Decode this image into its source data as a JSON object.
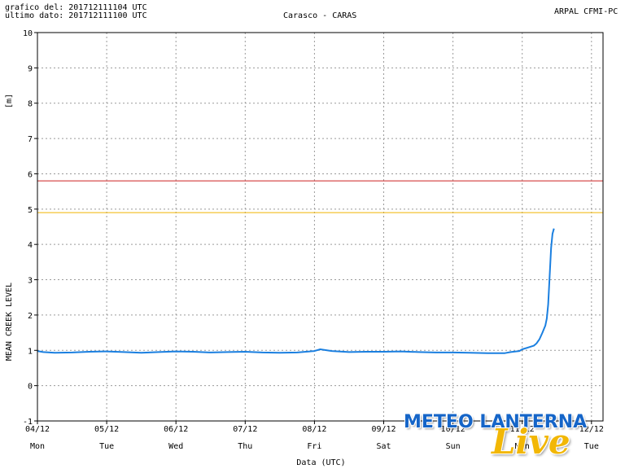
{
  "header": {
    "grafico_del": "grafico del: 201712111104 UTC",
    "ultimo_dato": "ultimo dato: 201712111100 UTC",
    "station": "Carasco - CARAS",
    "source": "ARPAL CFMI-PC"
  },
  "chart_data": {
    "type": "line",
    "title": "Carasco - CARAS",
    "ylabel": "MEAN CREEK LEVEL",
    "yunit": "[m]",
    "xlabel": "Data (UTC)",
    "ylim": [
      -1,
      10
    ],
    "yticks": [
      -1,
      0,
      1,
      2,
      3,
      4,
      5,
      6,
      7,
      8,
      9,
      10
    ],
    "xlim": [
      "2017-12-04 00:00",
      "2017-12-12 04:00"
    ],
    "grid": true,
    "x_ticks": [
      {
        "date": "04/12",
        "day": "Mon"
      },
      {
        "date": "05/12",
        "day": "Tue"
      },
      {
        "date": "06/12",
        "day": "Wed"
      },
      {
        "date": "07/12",
        "day": "Thu"
      },
      {
        "date": "08/12",
        "day": "Fri"
      },
      {
        "date": "09/12",
        "day": "Sat"
      },
      {
        "date": "10/12",
        "day": "Sun"
      },
      {
        "date": "11/12",
        "day": "Mon"
      },
      {
        "date": "12/12",
        "day": "Tue"
      }
    ],
    "thresholds": [
      {
        "value": 5.8,
        "color": "#cc2222"
      },
      {
        "value": 4.9,
        "color": "#f0b400"
      }
    ],
    "series": [
      {
        "color": "#1a7fe0",
        "points": [
          [
            "2017-12-04 00:00",
            0.98
          ],
          [
            "2017-12-04 02:00",
            0.95
          ],
          [
            "2017-12-04 06:00",
            0.93
          ],
          [
            "2017-12-04 12:00",
            0.94
          ],
          [
            "2017-12-04 18:00",
            0.96
          ],
          [
            "2017-12-05 00:00",
            0.97
          ],
          [
            "2017-12-05 06:00",
            0.95
          ],
          [
            "2017-12-05 12:00",
            0.93
          ],
          [
            "2017-12-05 18:00",
            0.95
          ],
          [
            "2017-12-06 00:00",
            0.97
          ],
          [
            "2017-12-06 06:00",
            0.96
          ],
          [
            "2017-12-06 12:00",
            0.94
          ],
          [
            "2017-12-06 18:00",
            0.95
          ],
          [
            "2017-12-07 00:00",
            0.96
          ],
          [
            "2017-12-07 06:00",
            0.94
          ],
          [
            "2017-12-07 12:00",
            0.93
          ],
          [
            "2017-12-07 18:00",
            0.94
          ],
          [
            "2017-12-08 00:00",
            0.98
          ],
          [
            "2017-12-08 02:00",
            1.03
          ],
          [
            "2017-12-08 06:00",
            0.98
          ],
          [
            "2017-12-08 12:00",
            0.95
          ],
          [
            "2017-12-08 18:00",
            0.96
          ],
          [
            "2017-12-09 00:00",
            0.96
          ],
          [
            "2017-12-09 06:00",
            0.97
          ],
          [
            "2017-12-09 12:00",
            0.95
          ],
          [
            "2017-12-09 18:00",
            0.94
          ],
          [
            "2017-12-10 00:00",
            0.94
          ],
          [
            "2017-12-10 06:00",
            0.93
          ],
          [
            "2017-12-10 12:00",
            0.92
          ],
          [
            "2017-12-10 18:00",
            0.92
          ],
          [
            "2017-12-10 20:00",
            0.95
          ],
          [
            "2017-12-10 23:00",
            0.98
          ],
          [
            "2017-12-11 00:00",
            1.03
          ],
          [
            "2017-12-11 02:00",
            1.08
          ],
          [
            "2017-12-11 04:00",
            1.13
          ],
          [
            "2017-12-11 05:00",
            1.2
          ],
          [
            "2017-12-11 06:00",
            1.32
          ],
          [
            "2017-12-11 07:00",
            1.5
          ],
          [
            "2017-12-11 08:00",
            1.7
          ],
          [
            "2017-12-11 08:30",
            1.9
          ],
          [
            "2017-12-11 09:00",
            2.3
          ],
          [
            "2017-12-11 09:30",
            3.1
          ],
          [
            "2017-12-11 10:00",
            3.9
          ],
          [
            "2017-12-11 10:30",
            4.3
          ],
          [
            "2017-12-11 11:00",
            4.45
          ]
        ]
      }
    ]
  },
  "watermark": {
    "brand": "METEO LANTERNA",
    "live": "Live"
  }
}
